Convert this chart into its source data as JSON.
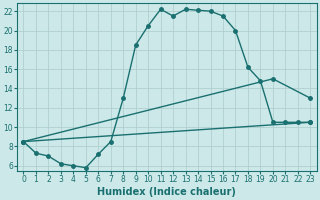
{
  "xlabel": "Humidex (Indice chaleur)",
  "bg_color": "#cce8e8",
  "grid_color": "#b0d0d0",
  "line_color": "#1a7070",
  "xlim": [
    -0.5,
    23.5
  ],
  "ylim": [
    5.5,
    22.8
  ],
  "xticks": [
    0,
    1,
    2,
    3,
    4,
    5,
    6,
    7,
    8,
    9,
    10,
    11,
    12,
    13,
    14,
    15,
    16,
    17,
    18,
    19,
    20,
    21,
    22,
    23
  ],
  "yticks": [
    6,
    8,
    10,
    12,
    14,
    16,
    18,
    20,
    22
  ],
  "line1_x": [
    0,
    1,
    2,
    3,
    4,
    5,
    6,
    7,
    8,
    9,
    10,
    11,
    12,
    13,
    14,
    15,
    16,
    17,
    18,
    19,
    20,
    21,
    22,
    23
  ],
  "line1_y": [
    8.5,
    7.3,
    7.0,
    6.2,
    6.0,
    5.8,
    7.2,
    8.5,
    13.0,
    18.5,
    20.5,
    22.2,
    21.5,
    22.2,
    22.1,
    22.0,
    21.5,
    20.0,
    16.2,
    14.8,
    10.5,
    10.5,
    10.5,
    10.5
  ],
  "line2_x": [
    0,
    23
  ],
  "line2_y": [
    8.5,
    10.5
  ],
  "line3_x": [
    0,
    20,
    23
  ],
  "line3_y": [
    8.5,
    15.0,
    13.0
  ],
  "xlabel_fontsize": 7,
  "tick_fontsize": 5.5
}
